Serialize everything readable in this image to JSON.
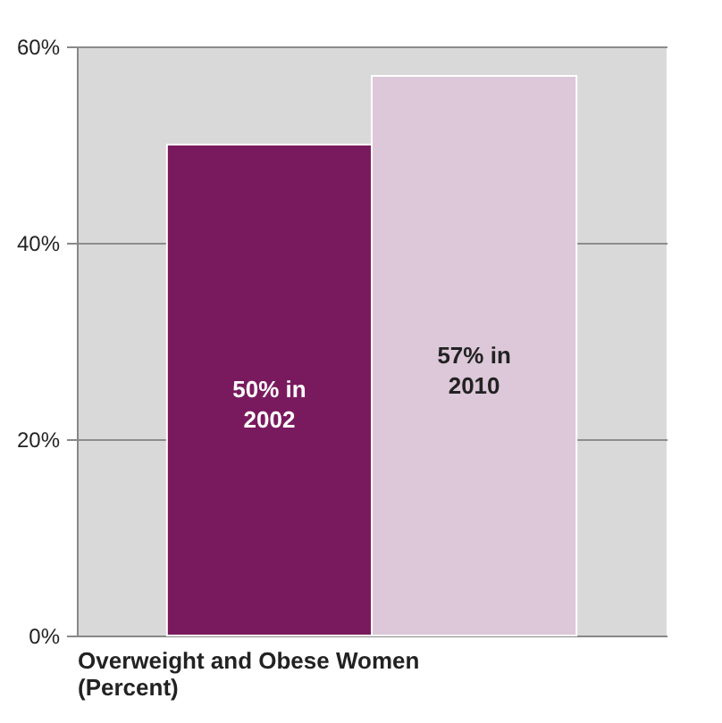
{
  "chart_data": {
    "type": "bar",
    "categories": [
      null
    ],
    "xlabel": "Overweight and Obese Women (Percent)",
    "series": [
      {
        "color": "#7a1a5e",
        "values": [
          50
        ],
        "value_labels": [
          "50% in 2002"
        ]
      },
      {
        "color": "#dcc8d8",
        "values": [
          57
        ],
        "value_labels": [
          "57% in 2010"
        ]
      }
    ],
    "ylim": [
      0,
      60
    ],
    "yticks": [
      {
        "value": 0,
        "label": "0%"
      },
      {
        "value": 20,
        "label": "20%"
      },
      {
        "value": 40,
        "label": "40%"
      },
      {
        "value": 60,
        "label": "60%"
      }
    ],
    "grid": "y",
    "legend": false
  }
}
